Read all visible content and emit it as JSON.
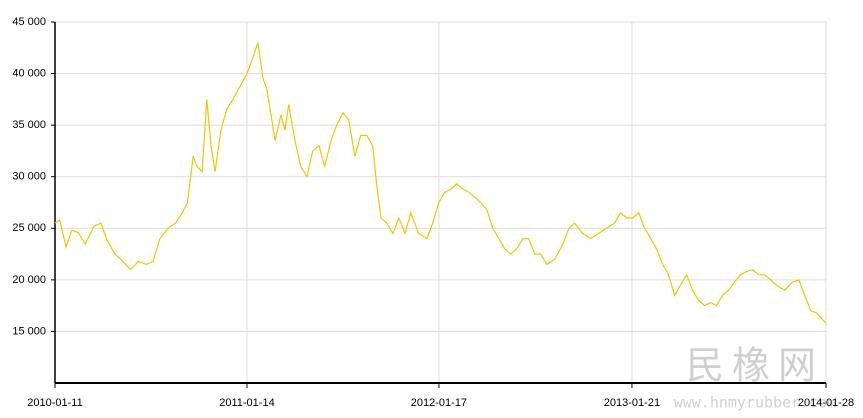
{
  "chart_data": {
    "type": "line",
    "color": "#f5c400",
    "grid": true,
    "x": [
      "2010-01-11",
      "2010-01-20",
      "2010-02-01",
      "2010-02-12",
      "2010-02-24",
      "2010-03-10",
      "2010-03-27",
      "2010-04-09",
      "2010-04-21",
      "2010-05-06",
      "2010-05-17",
      "2010-06-05",
      "2010-06-20",
      "2010-07-05",
      "2010-07-18",
      "2010-07-31",
      "2010-08-15",
      "2010-08-30",
      "2010-09-12",
      "2010-09-22",
      "2010-10-03",
      "2010-10-10",
      "2010-10-20",
      "2010-10-29",
      "2010-11-06",
      "2010-11-14",
      "2010-11-25",
      "2010-12-06",
      "2010-12-18",
      "2010-12-29",
      "2011-01-14",
      "2011-01-25",
      "2011-02-04",
      "2011-02-14",
      "2011-02-21",
      "2011-03-01",
      "2011-03-09",
      "2011-03-20",
      "2011-03-28",
      "2011-04-04",
      "2011-04-16",
      "2011-04-27",
      "2011-05-09",
      "2011-05-20",
      "2011-06-01",
      "2011-06-12",
      "2011-06-24",
      "2011-07-05",
      "2011-07-17",
      "2011-07-28",
      "2011-08-09",
      "2011-08-20",
      "2011-09-01",
      "2011-09-12",
      "2011-09-20",
      "2011-09-28",
      "2011-10-09",
      "2011-10-21",
      "2011-11-01",
      "2011-11-13",
      "2011-11-24",
      "2011-12-09",
      "2011-12-25",
      "2012-01-05",
      "2012-01-17",
      "2012-01-28",
      "2012-02-09",
      "2012-02-20",
      "2012-03-03",
      "2012-03-14",
      "2012-03-26",
      "2012-04-06",
      "2012-04-18",
      "2012-04-29",
      "2012-05-11",
      "2012-05-22",
      "2012-06-03",
      "2012-06-14",
      "2012-06-26",
      "2012-07-07",
      "2012-07-19",
      "2012-07-30",
      "2012-08-11",
      "2012-08-26",
      "2012-09-11",
      "2012-09-22",
      "2012-10-03",
      "2012-10-19",
      "2012-11-03",
      "2012-11-18",
      "2012-12-03",
      "2012-12-19",
      "2012-12-30",
      "2013-01-11",
      "2013-01-22",
      "2013-02-03",
      "2013-02-14",
      "2013-02-26",
      "2013-03-09",
      "2013-03-21",
      "2013-04-01",
      "2013-04-13",
      "2013-04-24",
      "2013-05-06",
      "2013-05-17",
      "2013-05-29",
      "2013-06-09",
      "2013-06-21",
      "2013-07-02",
      "2013-07-14",
      "2013-07-25",
      "2013-08-06",
      "2013-08-17",
      "2013-08-29",
      "2013-09-09",
      "2013-09-21",
      "2013-10-02",
      "2013-10-14",
      "2013-10-25",
      "2013-11-10",
      "2013-11-25",
      "2013-12-07",
      "2013-12-18",
      "2013-12-30",
      "2014-01-10",
      "2014-01-28"
    ],
    "values": [
      25500,
      25800,
      23200,
      24800,
      24600,
      23500,
      25200,
      25500,
      23800,
      22500,
      22000,
      21000,
      21800,
      21500,
      21800,
      24000,
      25000,
      25500,
      26500,
      27500,
      32000,
      31000,
      30500,
      37500,
      33000,
      30500,
      34500,
      36500,
      37500,
      38500,
      40000,
      41500,
      43000,
      39500,
      38500,
      36000,
      33500,
      36000,
      34500,
      37000,
      33500,
      31000,
      30000,
      32500,
      33000,
      31000,
      33500,
      35000,
      36200,
      35500,
      32000,
      34000,
      34000,
      33000,
      29000,
      26000,
      25500,
      24500,
      26000,
      24500,
      26500,
      24500,
      24000,
      25500,
      27500,
      28500,
      28800,
      29300,
      28800,
      28500,
      28000,
      27500,
      26800,
      25000,
      24000,
      23000,
      22500,
      23000,
      24000,
      24000,
      22500,
      22500,
      21500,
      22000,
      23500,
      25000,
      25500,
      24500,
      24000,
      24500,
      25000,
      25500,
      26500,
      26000,
      26000,
      26500,
      25000,
      24000,
      23000,
      21500,
      20500,
      18500,
      19500,
      20500,
      19000,
      18000,
      17500,
      17800,
      17500,
      18500,
      19000,
      19800,
      20500,
      20800,
      21000,
      20500,
      20500,
      20000,
      19500,
      19000,
      19800,
      20000,
      18500,
      17000,
      16800,
      15800
    ],
    "xlim": [
      "2010-01-11",
      "2014-01-28"
    ],
    "xticks": [
      "2010-01-11",
      "2011-01-14",
      "2012-01-17",
      "2013-01-21",
      "2014-01-28"
    ],
    "ylim": [
      10000,
      45000
    ],
    "yticks": [
      {
        "value": 15000,
        "label": "15 000"
      },
      {
        "value": 20000,
        "label": "20 000"
      },
      {
        "value": 25000,
        "label": "25 000"
      },
      {
        "value": 30000,
        "label": "30 000"
      },
      {
        "value": 35000,
        "label": "35 000"
      },
      {
        "value": 40000,
        "label": "40 000"
      },
      {
        "value": 45000,
        "label": "45 000"
      }
    ],
    "watermark": {
      "logo": "民橡网",
      "url": "www.hnmyrubber.com"
    }
  }
}
